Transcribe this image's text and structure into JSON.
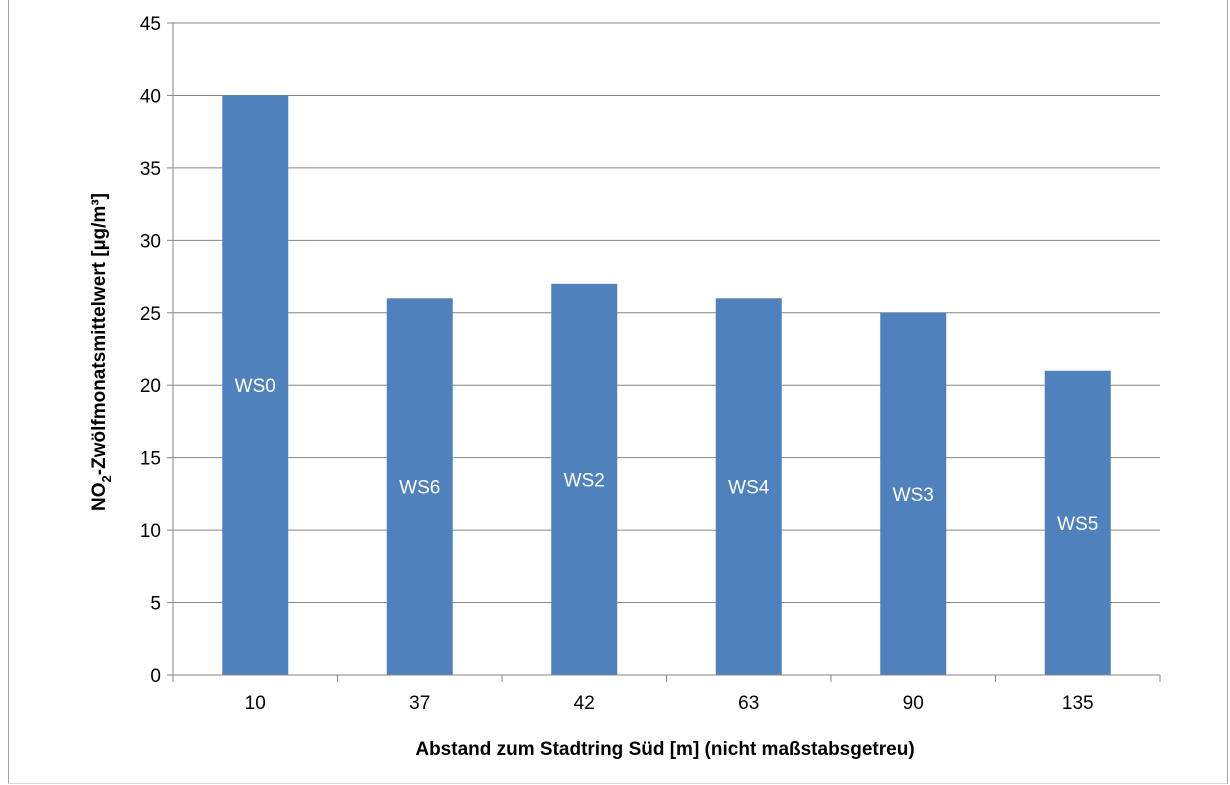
{
  "chart_data": {
    "type": "bar",
    "title": "",
    "xlabel": "Abstand zum Stadtring Süd [m] (nicht maßstabsgetreu)",
    "ylabel_parts": {
      "main": "NO",
      "subscript": "2",
      "rest": "-Zwölfmonatsmittelwert [µg/m³]"
    },
    "categories": [
      "10",
      "37",
      "42",
      "63",
      "90",
      "135"
    ],
    "values": [
      40,
      26,
      27,
      26,
      25,
      21
    ],
    "data_labels": [
      "WS0",
      "WS6",
      "WS2",
      "WS4",
      "WS3",
      "WS5"
    ],
    "ylim": [
      0,
      45
    ],
    "yticks": [
      0,
      5,
      10,
      15,
      20,
      25,
      30,
      35,
      40,
      45
    ],
    "grid": true,
    "legend": "none",
    "colors": {
      "bar": "#4f81bd",
      "grid": "#868686",
      "axis": "#868686"
    }
  }
}
